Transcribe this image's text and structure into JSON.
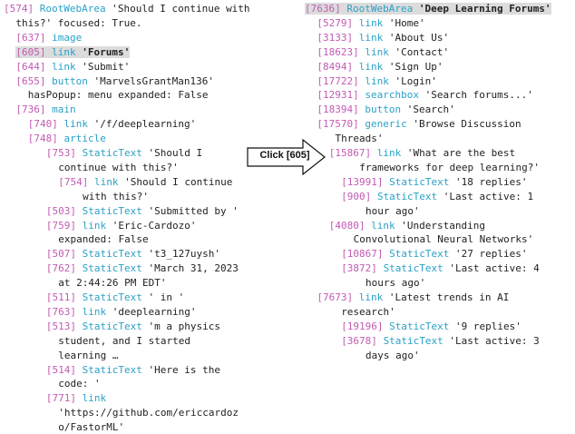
{
  "left_tree": [
    {
      "indent": 0,
      "id": "[574]",
      "role": "RootWebArea",
      "text": "'Should I continue with",
      "hl": false,
      "bold": false
    },
    {
      "indent": 2,
      "id": "",
      "role": "",
      "text": "this?'  focused: True.",
      "hl": false,
      "bold": false
    },
    {
      "indent": 2,
      "id": "[637]",
      "role": "image",
      "text": "",
      "hl": false,
      "bold": false
    },
    {
      "indent": 2,
      "id": "[605]",
      "role": "link",
      "text": "'Forums'",
      "hl": true,
      "bold": true
    },
    {
      "indent": 2,
      "id": "[644]",
      "role": "link",
      "text": "'Submit'",
      "hl": false,
      "bold": false
    },
    {
      "indent": 2,
      "id": "[655]",
      "role": "button",
      "text": "'MarvelsGrantMan136'",
      "hl": false,
      "bold": false
    },
    {
      "indent": 4,
      "id": "",
      "role": "",
      "text": "hasPopup: menu expanded: False",
      "hl": false,
      "bold": false
    },
    {
      "indent": 2,
      "id": "[736]",
      "role": "main",
      "text": "",
      "hl": false,
      "bold": false
    },
    {
      "indent": 4,
      "id": "[740]",
      "role": "link",
      "text": "'/f/deeplearning'",
      "hl": false,
      "bold": false
    },
    {
      "indent": 4,
      "id": "[748]",
      "role": "article",
      "text": "",
      "hl": false,
      "bold": false
    },
    {
      "indent": 7,
      "id": "[753]",
      "role": "StaticText",
      "text": "'Should I",
      "hl": false,
      "bold": false
    },
    {
      "indent": 9,
      "id": "",
      "role": "",
      "text": "continue with this?'",
      "hl": false,
      "bold": false
    },
    {
      "indent": 9,
      "id": "[754]",
      "role": "link",
      "text": "'Should I continue",
      "hl": false,
      "bold": false
    },
    {
      "indent": 13,
      "id": "",
      "role": "",
      "text": "with this?'",
      "hl": false,
      "bold": false
    },
    {
      "indent": 7,
      "id": "[503]",
      "role": "StaticText",
      "text": "'Submitted by '",
      "hl": false,
      "bold": false
    },
    {
      "indent": 7,
      "id": "[759]",
      "role": "link",
      "text": "'Eric-Cardozo'",
      "hl": false,
      "bold": false
    },
    {
      "indent": 9,
      "id": "",
      "role": "",
      "text": "expanded: False",
      "hl": false,
      "bold": false
    },
    {
      "indent": 7,
      "id": "[507]",
      "role": "StaticText",
      "text": "'t3_127uysh'",
      "hl": false,
      "bold": false
    },
    {
      "indent": 7,
      "id": "[762]",
      "role": "StaticText",
      "text": "'March 31, 2023",
      "hl": false,
      "bold": false
    },
    {
      "indent": 9,
      "id": "",
      "role": "",
      "text": "at 2:44:26 PM EDT'",
      "hl": false,
      "bold": false
    },
    {
      "indent": 7,
      "id": "[511]",
      "role": "StaticText",
      "text": "' in '",
      "hl": false,
      "bold": false
    },
    {
      "indent": 7,
      "id": "[763]",
      "role": "link",
      "text": "'deeplearning'",
      "hl": false,
      "bold": false
    },
    {
      "indent": 7,
      "id": "[513]",
      "role": "StaticText",
      "text": "'m a physics",
      "hl": false,
      "bold": false
    },
    {
      "indent": 9,
      "id": "",
      "role": "",
      "text": "student, and I started",
      "hl": false,
      "bold": false
    },
    {
      "indent": 9,
      "id": "",
      "role": "",
      "text": "learning …",
      "hl": false,
      "bold": false
    },
    {
      "indent": 7,
      "id": "[514]",
      "role": "StaticText",
      "text": "'Here is the",
      "hl": false,
      "bold": false
    },
    {
      "indent": 9,
      "id": "",
      "role": "",
      "text": "code: '",
      "hl": false,
      "bold": false
    },
    {
      "indent": 7,
      "id": "[771]",
      "role": "link",
      "text": "",
      "hl": false,
      "bold": false
    },
    {
      "indent": 9,
      "id": "",
      "role": "",
      "text": "'https://github.com/ericcardoz",
      "hl": false,
      "bold": false
    },
    {
      "indent": 9,
      "id": "",
      "role": "",
      "text": "o/FastorML'",
      "hl": false,
      "bold": false
    }
  ],
  "right_tree": [
    {
      "indent": 0,
      "id": "[7636]",
      "role": "RootWebArea",
      "text": "'Deep Learning Forums'",
      "hl": true,
      "bold": true
    },
    {
      "indent": 2,
      "id": "[5279]",
      "role": "link",
      "text": "'Home'",
      "hl": false,
      "bold": false
    },
    {
      "indent": 2,
      "id": "[3133]",
      "role": "link",
      "text": "'About Us'",
      "hl": false,
      "bold": false
    },
    {
      "indent": 2,
      "id": "[18623]",
      "role": "link",
      "text": "'Contact'",
      "hl": false,
      "bold": false
    },
    {
      "indent": 2,
      "id": "[8494]",
      "role": "link",
      "text": "'Sign Up'",
      "hl": false,
      "bold": false
    },
    {
      "indent": 2,
      "id": "[17722]",
      "role": "link",
      "text": "'Login'",
      "hl": false,
      "bold": false
    },
    {
      "indent": 2,
      "id": "[12931]",
      "role": "searchbox",
      "text": "'Search forums...'",
      "hl": false,
      "bold": false
    },
    {
      "indent": 2,
      "id": "[18394]",
      "role": "button",
      "text": "'Search'",
      "hl": false,
      "bold": false
    },
    {
      "indent": 2,
      "id": "[17570]",
      "role": "generic",
      "text": "'Browse Discussion",
      "hl": false,
      "bold": false
    },
    {
      "indent": 5,
      "id": "",
      "role": "",
      "text": "Threads'",
      "hl": false,
      "bold": false
    },
    {
      "indent": 4,
      "id": "[15867]",
      "role": "link",
      "text": "'What are the best",
      "hl": false,
      "bold": false
    },
    {
      "indent": 9,
      "id": "",
      "role": "",
      "text": "frameworks for deep learning?'",
      "hl": false,
      "bold": false
    },
    {
      "indent": 6,
      "id": "[13991]",
      "role": "StaticText",
      "text": "'18 replies'",
      "hl": false,
      "bold": false
    },
    {
      "indent": 6,
      "id": "[900]",
      "role": "StaticText",
      "text": "'Last active: 1",
      "hl": false,
      "bold": false
    },
    {
      "indent": 10,
      "id": "",
      "role": "",
      "text": "hour ago'",
      "hl": false,
      "bold": false
    },
    {
      "indent": 4,
      "id": "[4080]",
      "role": "link",
      "text": "'Understanding",
      "hl": false,
      "bold": false
    },
    {
      "indent": 8,
      "id": "",
      "role": "",
      "text": "Convolutional Neural Networks'",
      "hl": false,
      "bold": false
    },
    {
      "indent": 6,
      "id": "[10867]",
      "role": "StaticText",
      "text": "'27 replies'",
      "hl": false,
      "bold": false
    },
    {
      "indent": 6,
      "id": "[3872]",
      "role": "StaticText",
      "text": "'Last active: 4",
      "hl": false,
      "bold": false
    },
    {
      "indent": 10,
      "id": "",
      "role": "",
      "text": "hours ago'",
      "hl": false,
      "bold": false
    },
    {
      "indent": 2,
      "id": "[7673]",
      "role": "link",
      "text": "'Latest trends in AI",
      "hl": false,
      "bold": false
    },
    {
      "indent": 6,
      "id": "",
      "role": "",
      "text": "research'",
      "hl": false,
      "bold": false
    },
    {
      "indent": 6,
      "id": "[19196]",
      "role": "StaticText",
      "text": "'9 replies'",
      "hl": false,
      "bold": false
    },
    {
      "indent": 6,
      "id": "[3678]",
      "role": "StaticText",
      "text": "'Last active: 3",
      "hl": false,
      "bold": false
    },
    {
      "indent": 10,
      "id": "",
      "role": "",
      "text": "days ago'",
      "hl": false,
      "bold": false
    }
  ],
  "action": {
    "label": "Click [605]"
  }
}
